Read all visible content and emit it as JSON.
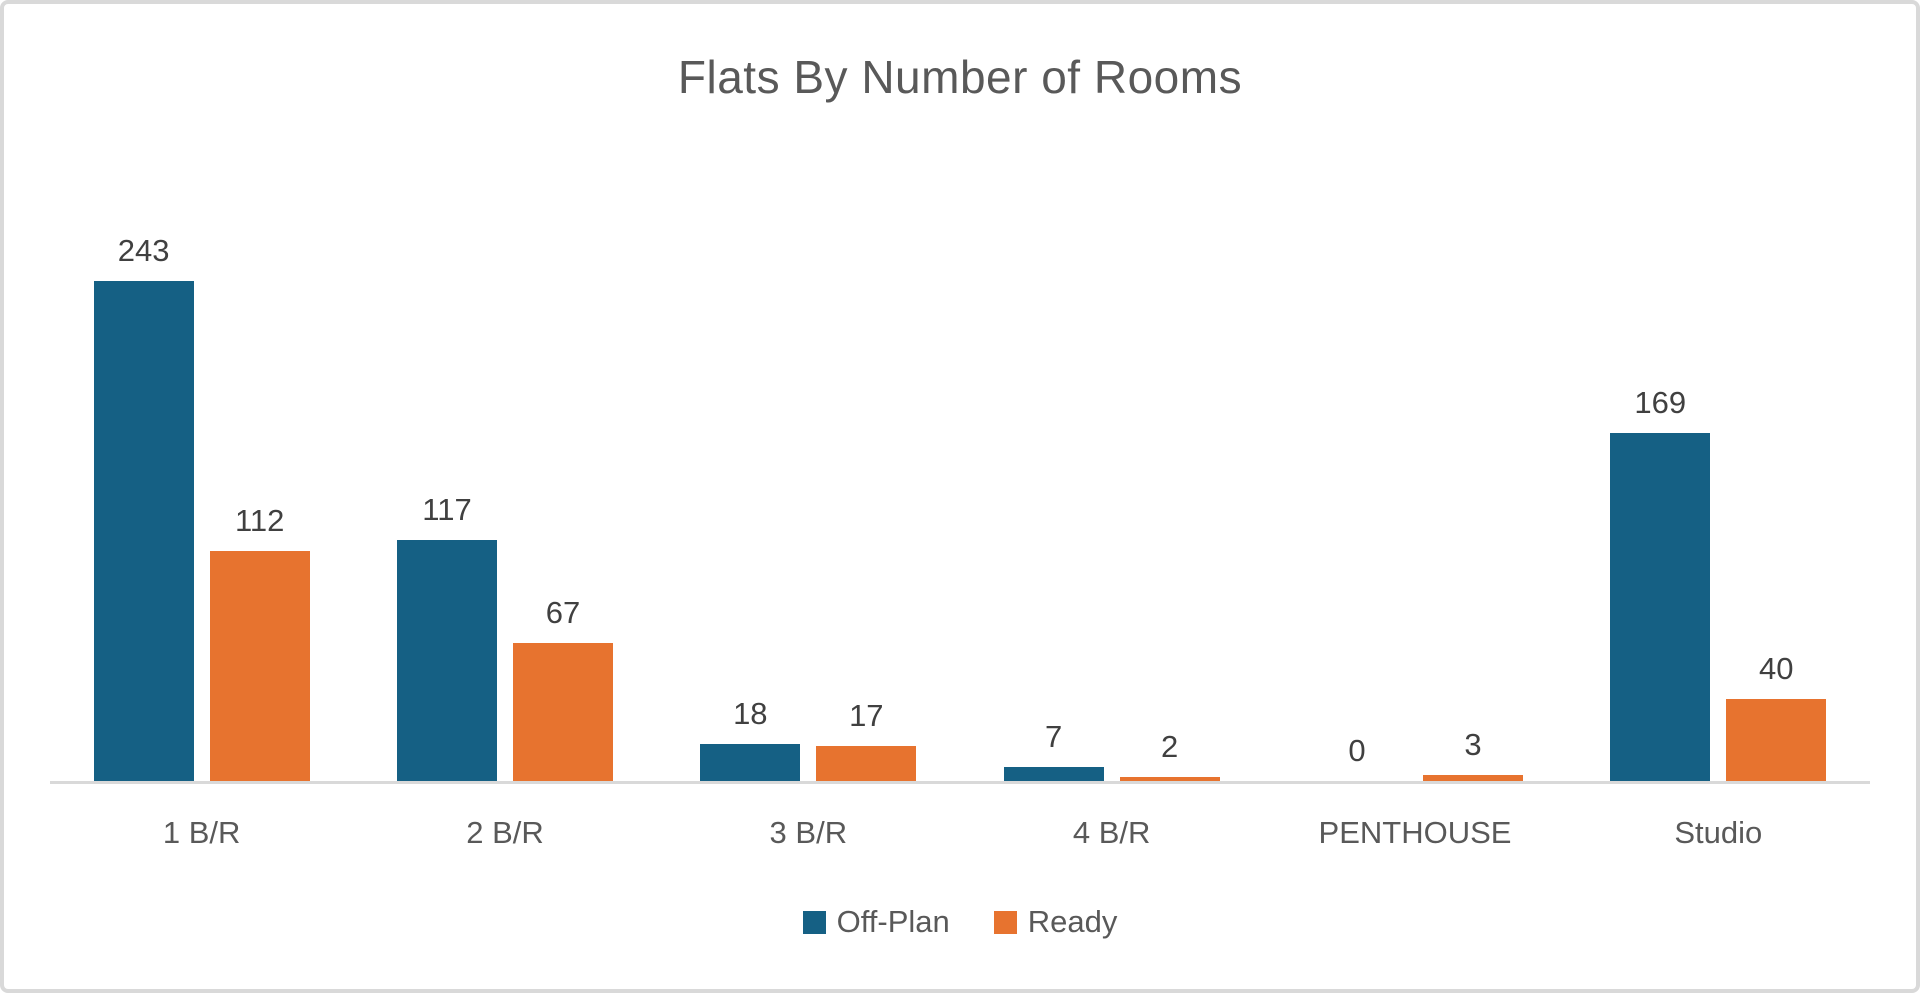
{
  "chart_data": {
    "type": "bar",
    "title": "Flats By Number of Rooms",
    "categories": [
      "1 B/R",
      "2 B/R",
      "3 B/R",
      "4 B/R",
      "PENTHOUSE",
      "Studio"
    ],
    "series": [
      {
        "name": "Off-Plan",
        "color": "#156084",
        "values": [
          243,
          117,
          18,
          7,
          0,
          169
        ]
      },
      {
        "name": "Ready",
        "color": "#E7732F",
        "values": [
          112,
          67,
          17,
          2,
          3,
          40
        ]
      }
    ],
    "data_labels": [
      [
        "243",
        "117",
        "18",
        "7",
        "0",
        "169"
      ],
      [
        "112",
        "67",
        "17",
        "2",
        "3",
        "40"
      ]
    ],
    "ylim": [
      0,
      243
    ],
    "xlabel": "",
    "ylabel": "",
    "grid": false,
    "legend_position": "bottom",
    "axis_color": "#d9d9d9",
    "title_color": "#595959",
    "label_color": "#404040",
    "category_color": "#595959"
  }
}
